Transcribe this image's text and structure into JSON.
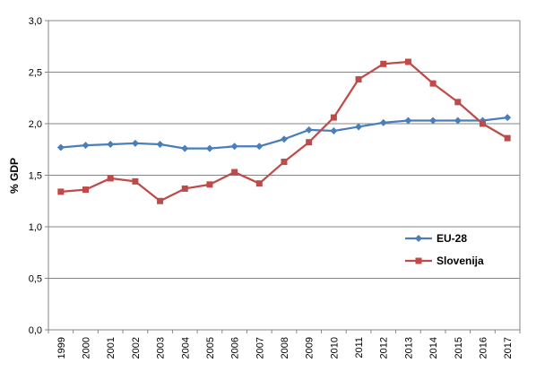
{
  "chart_data": {
    "type": "line",
    "title": "",
    "xlabel": "",
    "ylabel": "% GDP",
    "ylim": [
      0,
      3
    ],
    "yticks": [
      "0,0",
      "0,5",
      "1,0",
      "1,5",
      "2,0",
      "2,5",
      "3,0"
    ],
    "categories": [
      "1999",
      "2000",
      "2001",
      "2002",
      "2003",
      "2004",
      "2005",
      "2006",
      "2007",
      "2008",
      "2009",
      "2010",
      "2011",
      "2012",
      "2013",
      "2014",
      "2015",
      "2016",
      "2017"
    ],
    "grid": true,
    "legend_position": "right",
    "series": [
      {
        "name": "EU-28",
        "color": "#4a7ebb",
        "marker": "diamond",
        "values": [
          1.77,
          1.79,
          1.8,
          1.81,
          1.8,
          1.76,
          1.76,
          1.78,
          1.78,
          1.85,
          1.94,
          1.93,
          1.97,
          2.01,
          2.03,
          2.03,
          2.03,
          2.03,
          2.06
        ]
      },
      {
        "name": "Slovenija",
        "color": "#be4b48",
        "marker": "square",
        "values": [
          1.34,
          1.36,
          1.47,
          1.44,
          1.25,
          1.37,
          1.41,
          1.53,
          1.42,
          1.63,
          1.82,
          2.06,
          2.43,
          2.58,
          2.6,
          2.39,
          2.21,
          2.0,
          1.86
        ]
      }
    ]
  }
}
